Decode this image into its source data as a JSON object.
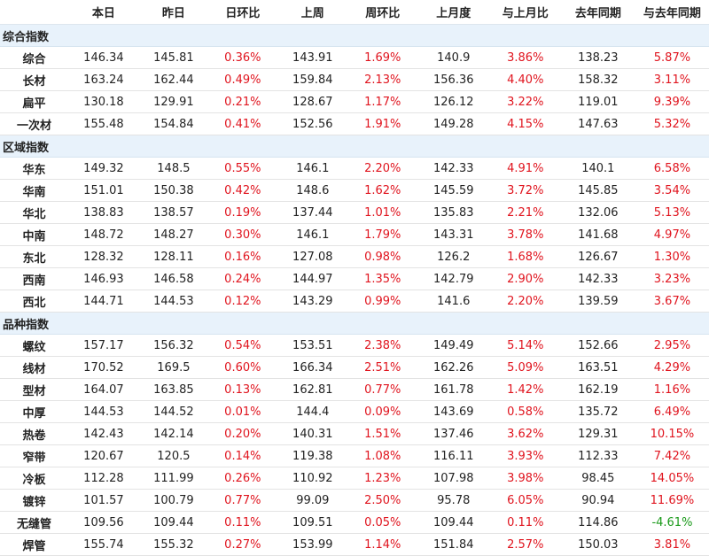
{
  "header": [
    "",
    "本日",
    "昨日",
    "日环比",
    "上周",
    "周环比",
    "上月度",
    "与上月比",
    "去年同期",
    "与去年同期"
  ],
  "sections": [
    {
      "title": "综合指数",
      "rows": [
        [
          "综合",
          "146.34",
          "145.81",
          "0.36%",
          "143.91",
          "1.69%",
          "140.9",
          "3.86%",
          "138.23",
          "5.87%"
        ],
        [
          "长材",
          "163.24",
          "162.44",
          "0.49%",
          "159.84",
          "2.13%",
          "156.36",
          "4.40%",
          "158.32",
          "3.11%"
        ],
        [
          "扁平",
          "130.18",
          "129.91",
          "0.21%",
          "128.67",
          "1.17%",
          "126.12",
          "3.22%",
          "119.01",
          "9.39%"
        ],
        [
          "一次材",
          "155.48",
          "154.84",
          "0.41%",
          "152.56",
          "1.91%",
          "149.28",
          "4.15%",
          "147.63",
          "5.32%"
        ]
      ]
    },
    {
      "title": "区域指数",
      "rows": [
        [
          "华东",
          "149.32",
          "148.5",
          "0.55%",
          "146.1",
          "2.20%",
          "142.33",
          "4.91%",
          "140.1",
          "6.58%"
        ],
        [
          "华南",
          "151.01",
          "150.38",
          "0.42%",
          "148.6",
          "1.62%",
          "145.59",
          "3.72%",
          "145.85",
          "3.54%"
        ],
        [
          "华北",
          "138.83",
          "138.57",
          "0.19%",
          "137.44",
          "1.01%",
          "135.83",
          "2.21%",
          "132.06",
          "5.13%"
        ],
        [
          "中南",
          "148.72",
          "148.27",
          "0.30%",
          "146.1",
          "1.79%",
          "143.31",
          "3.78%",
          "141.68",
          "4.97%"
        ],
        [
          "东北",
          "128.32",
          "128.11",
          "0.16%",
          "127.08",
          "0.98%",
          "126.2",
          "1.68%",
          "126.67",
          "1.30%"
        ],
        [
          "西南",
          "146.93",
          "146.58",
          "0.24%",
          "144.97",
          "1.35%",
          "142.79",
          "2.90%",
          "142.33",
          "3.23%"
        ],
        [
          "西北",
          "144.71",
          "144.53",
          "0.12%",
          "143.29",
          "0.99%",
          "141.6",
          "2.20%",
          "139.59",
          "3.67%"
        ]
      ]
    },
    {
      "title": "品种指数",
      "rows": [
        [
          "螺纹",
          "157.17",
          "156.32",
          "0.54%",
          "153.51",
          "2.38%",
          "149.49",
          "5.14%",
          "152.66",
          "2.95%"
        ],
        [
          "线材",
          "170.52",
          "169.5",
          "0.60%",
          "166.34",
          "2.51%",
          "162.26",
          "5.09%",
          "163.51",
          "4.29%"
        ],
        [
          "型材",
          "164.07",
          "163.85",
          "0.13%",
          "162.81",
          "0.77%",
          "161.78",
          "1.42%",
          "162.19",
          "1.16%"
        ],
        [
          "中厚",
          "144.53",
          "144.52",
          "0.01%",
          "144.4",
          "0.09%",
          "143.69",
          "0.58%",
          "135.72",
          "6.49%"
        ],
        [
          "热卷",
          "142.43",
          "142.14",
          "0.20%",
          "140.31",
          "1.51%",
          "137.46",
          "3.62%",
          "129.31",
          "10.15%"
        ],
        [
          "窄带",
          "120.67",
          "120.5",
          "0.14%",
          "119.38",
          "1.08%",
          "116.11",
          "3.93%",
          "112.33",
          "7.42%"
        ],
        [
          "冷板",
          "112.28",
          "111.99",
          "0.26%",
          "110.92",
          "1.23%",
          "107.98",
          "3.98%",
          "98.45",
          "14.05%"
        ],
        [
          "镀锌",
          "101.57",
          "100.79",
          "0.77%",
          "99.09",
          "2.50%",
          "95.78",
          "6.05%",
          "90.94",
          "11.69%"
        ],
        [
          "无缝管",
          "109.56",
          "109.44",
          "0.11%",
          "109.51",
          "0.05%",
          "109.44",
          "0.11%",
          "114.86",
          "-4.61%"
        ],
        [
          "焊管",
          "155.74",
          "155.32",
          "0.27%",
          "153.99",
          "1.14%",
          "151.84",
          "2.57%",
          "150.03",
          "3.81%"
        ]
      ]
    }
  ]
}
